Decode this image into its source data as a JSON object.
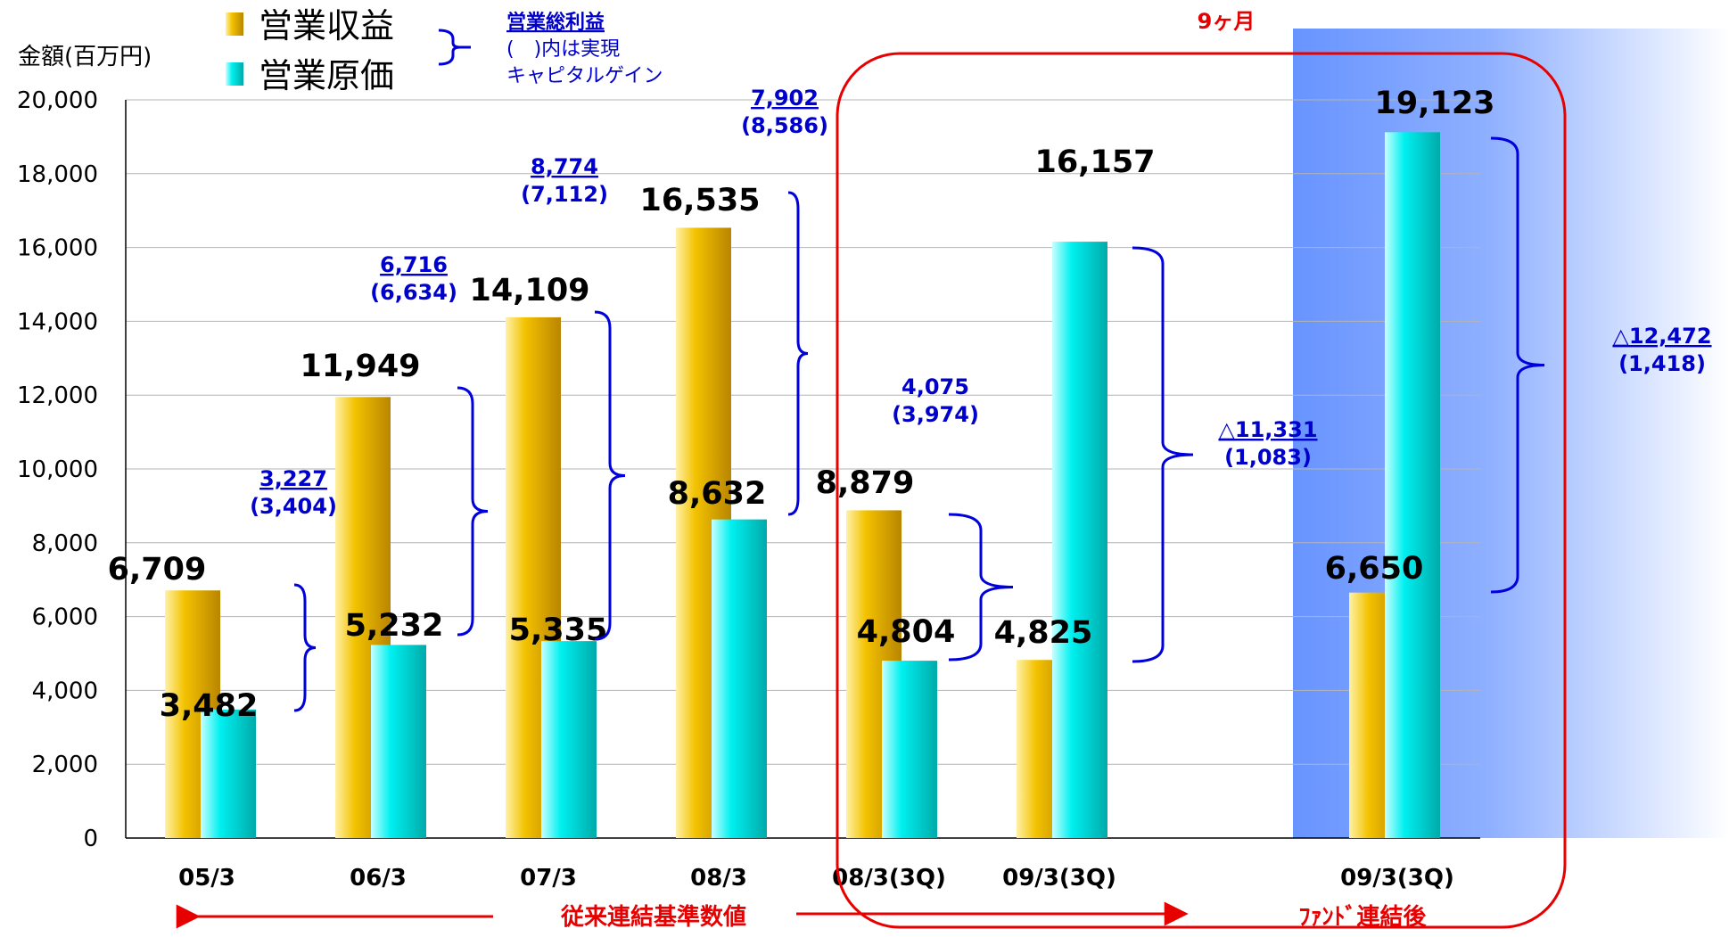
{
  "chart_data": {
    "type": "bar",
    "ylabel": "金額(百万円)",
    "ylim": [
      0,
      20000
    ],
    "yticks": [
      0,
      2000,
      4000,
      6000,
      8000,
      10000,
      12000,
      14000,
      16000,
      18000,
      20000
    ],
    "ytick_labels": [
      "0",
      "2,000",
      "4,000",
      "6,000",
      "8,000",
      "10,000",
      "12,000",
      "14,000",
      "16,000",
      "18,000",
      "20,000"
    ],
    "grid": true,
    "categories": [
      "05/3",
      "06/3",
      "07/3",
      "08/3",
      "08/3(3Q)",
      "09/3(3Q)",
      "09/3(3Q)"
    ],
    "series": [
      {
        "name": "営業収益",
        "color": "#e8b400",
        "values": [
          6709,
          11949,
          14109,
          16535,
          8879,
          4825,
          6650
        ],
        "labels": [
          "6,709",
          "11,949",
          "14,109",
          "16,535",
          "8,879",
          "4,825",
          "6,650"
        ]
      },
      {
        "name": "営業原価",
        "color": "#00eeee",
        "values": [
          3482,
          5232,
          5335,
          8632,
          4804,
          16157,
          19123
        ],
        "labels": [
          "3,482",
          "5,232",
          "5,335",
          "8,632",
          "4,804",
          "16,157",
          "19,123"
        ]
      }
    ],
    "gross_profit": [
      {
        "value": "3,227",
        "capital_gain": "(3,404)"
      },
      {
        "value": "6,716",
        "capital_gain": "(6,634)"
      },
      {
        "value": "8,774",
        "capital_gain": "(7,112)"
      },
      {
        "value": "7,902",
        "capital_gain": "(8,586)"
      },
      {
        "value": "4,075",
        "capital_gain": "(3,974)"
      },
      {
        "value": "△11,331",
        "capital_gain": "(1,083)"
      },
      {
        "value": "△12,472",
        "capital_gain": "(1,418)"
      }
    ],
    "legend_placement": "top-left",
    "annotations": {
      "legend_note_title": "営業総利益",
      "legend_note_line1": "(　)内は実現",
      "legend_note_line2": "キャピタルゲイン",
      "period_label": "9ヶ月",
      "old_basis_label": "従来連結基準数値",
      "fund_label": "ﾌｧﾝﾄﾞ連結後"
    },
    "colors": {
      "revenue": "#e8b400",
      "cost": "#00eeee",
      "bracket": "#0000dd",
      "note_text": "#0000cc",
      "highlight": "#e60000",
      "fund_panel": "#6e9cff"
    }
  }
}
